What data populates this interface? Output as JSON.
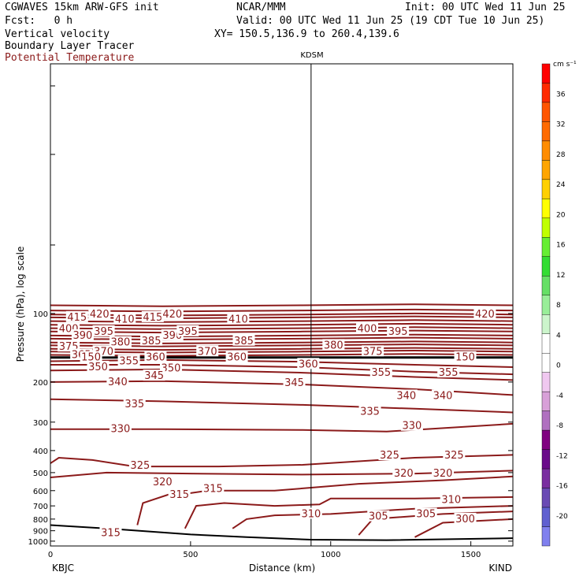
{
  "header": {
    "model": "CGWAVES 15km ARW-GFS init",
    "org": "NCAR/MMM",
    "init": "Init: 00 UTC Wed 11 Jun 25",
    "fcst": "Fcst:   0 h",
    "valid": "Valid: 00 UTC Wed 11 Jun 25 (19 CDT Tue 10 Jun 25)",
    "field1": "Vertical velocity",
    "xy": "XY= 150.5,136.9 to 260.4,139.6",
    "field2": "Boundary Layer Tracer",
    "field3": "Potential Temperature"
  },
  "colors": {
    "contour": "#8b1a1a",
    "frame": "#000000"
  },
  "chart_data": {
    "type": "line",
    "xlabel": "Distance (km)",
    "ylabel": "Pressure (hPa), log scale",
    "xlim": [
      0,
      1650
    ],
    "ylim": [
      1050,
      8
    ],
    "x_ticks": [
      0,
      500,
      1000,
      1500
    ],
    "y_ticks": [
      100,
      200,
      300,
      400,
      500,
      600,
      700,
      800,
      900,
      1000
    ],
    "station_marker": {
      "label": "KDSM",
      "x": 930
    },
    "endpoints": {
      "left": "KBJC",
      "right": "KIND"
    },
    "colorbar": {
      "unit": "cm s⁻¹",
      "labels": [
        "36",
        "32",
        "28",
        "24",
        "20",
        "16",
        "12",
        "8",
        "4",
        "0",
        "-4",
        "-8",
        "-12",
        "-16",
        "-20"
      ],
      "colors": [
        "#ff0000",
        "#ff2a00",
        "#ff5500",
        "#ff6a00",
        "#ff8c00",
        "#ffa500",
        "#ffd000",
        "#ffff00",
        "#c0ff00",
        "#66ee33",
        "#33dd33",
        "#66e066",
        "#99ee99",
        "#ccf5cc",
        "#ffffff",
        "#ffffff",
        "#f0c8f0",
        "#d8a0d8",
        "#b070c0",
        "#800080",
        "#6a0a8a",
        "#7a2ea0",
        "#6a4ab4",
        "#6060d0",
        "#8080ee"
      ]
    },
    "contour_labels": [
      {
        "text": "415",
        "x": 95,
        "p": 104
      },
      {
        "text": "420",
        "x": 175,
        "p": 101
      },
      {
        "text": "410",
        "x": 265,
        "p": 106
      },
      {
        "text": "415",
        "x": 365,
        "p": 104
      },
      {
        "text": "420",
        "x": 435,
        "p": 101
      },
      {
        "text": "410",
        "x": 670,
        "p": 106
      },
      {
        "text": "420",
        "x": 1550,
        "p": 101
      },
      {
        "text": "400",
        "x": 65,
        "p": 117
      },
      {
        "text": "395",
        "x": 190,
        "p": 120
      },
      {
        "text": "390",
        "x": 115,
        "p": 125
      },
      {
        "text": "400",
        "x": 1130,
        "p": 117
      },
      {
        "text": "395",
        "x": 1240,
        "p": 120
      },
      {
        "text": "385",
        "x": 360,
        "p": 132
      },
      {
        "text": "390",
        "x": 435,
        "p": 125
      },
      {
        "text": "395",
        "x": 490,
        "p": 120
      },
      {
        "text": "385",
        "x": 690,
        "p": 132
      },
      {
        "text": "375",
        "x": 65,
        "p": 140
      },
      {
        "text": "380",
        "x": 250,
        "p": 134
      },
      {
        "text": "380",
        "x": 1010,
        "p": 138
      },
      {
        "text": "370",
        "x": 190,
        "p": 147
      },
      {
        "text": "365",
        "x": 110,
        "p": 152
      },
      {
        "text": "370",
        "x": 560,
        "p": 147
      },
      {
        "text": "375",
        "x": 1150,
        "p": 147
      },
      {
        "text": "150",
        "x": 145,
        "p": 156
      },
      {
        "text": "360",
        "x": 375,
        "p": 156
      },
      {
        "text": "360",
        "x": 665,
        "p": 156
      },
      {
        "text": "150",
        "x": 1480,
        "p": 156
      },
      {
        "text": "355",
        "x": 280,
        "p": 162
      },
      {
        "text": "350",
        "x": 170,
        "p": 172
      },
      {
        "text": "350",
        "x": 430,
        "p": 174
      },
      {
        "text": "360",
        "x": 920,
        "p": 167
      },
      {
        "text": "355",
        "x": 1180,
        "p": 182
      },
      {
        "text": "355",
        "x": 1420,
        "p": 182
      },
      {
        "text": "345",
        "x": 370,
        "p": 188
      },
      {
        "text": "340",
        "x": 240,
        "p": 200
      },
      {
        "text": "345",
        "x": 870,
        "p": 202
      },
      {
        "text": "340",
        "x": 1270,
        "p": 230
      },
      {
        "text": "340",
        "x": 1400,
        "p": 230
      },
      {
        "text": "335",
        "x": 300,
        "p": 250
      },
      {
        "text": "335",
        "x": 1140,
        "p": 270
      },
      {
        "text": "330",
        "x": 250,
        "p": 322
      },
      {
        "text": "330",
        "x": 1290,
        "p": 312
      },
      {
        "text": "325",
        "x": 1210,
        "p": 420
      },
      {
        "text": "325",
        "x": 1440,
        "p": 420
      },
      {
        "text": "325",
        "x": 320,
        "p": 465
      },
      {
        "text": "320",
        "x": 1260,
        "p": 505
      },
      {
        "text": "320",
        "x": 1400,
        "p": 505
      },
      {
        "text": "320",
        "x": 400,
        "p": 550
      },
      {
        "text": "315",
        "x": 580,
        "p": 590
      },
      {
        "text": "315",
        "x": 460,
        "p": 625
      },
      {
        "text": "310",
        "x": 1430,
        "p": 660
      },
      {
        "text": "310",
        "x": 930,
        "p": 760
      },
      {
        "text": "305",
        "x": 1170,
        "p": 780
      },
      {
        "text": "305",
        "x": 1340,
        "p": 760
      },
      {
        "text": "300",
        "x": 1480,
        "p": 800
      },
      {
        "text": "315",
        "x": 215,
        "p": 920
      }
    ]
  }
}
